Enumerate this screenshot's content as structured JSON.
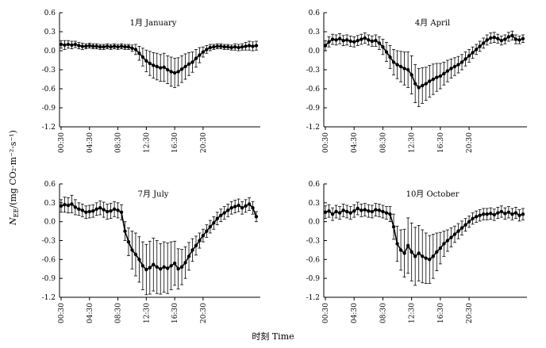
{
  "figure": {
    "xlabel": "时刻 Time",
    "ylabel_prefix": "N",
    "ylabel_sub": "EE",
    "ylabel_body": "/(mg CO₂·m⁻²·s⁻¹)"
  },
  "chart_data": [
    {
      "type": "line",
      "title": "1月 January",
      "x_ticks": [
        "00:30",
        "04:30",
        "08:30",
        "12:30",
        "16:30",
        "20:30"
      ],
      "y_ticks": [
        "0.6",
        "0.3",
        "0.0",
        "-0.3",
        "-0.6",
        "-0.9",
        "-1.2"
      ],
      "ylim": [
        -1.2,
        0.6
      ],
      "values": [
        0.1,
        0.09,
        0.1,
        0.09,
        0.1,
        0.08,
        0.07,
        0.07,
        0.08,
        0.07,
        0.07,
        0.06,
        0.06,
        0.07,
        0.06,
        0.07,
        0.06,
        0.07,
        0.06,
        0.06,
        0.04,
        0.02,
        -0.04,
        -0.1,
        -0.16,
        -0.2,
        -0.23,
        -0.25,
        -0.27,
        -0.26,
        -0.3,
        -0.33,
        -0.35,
        -0.33,
        -0.29,
        -0.25,
        -0.21,
        -0.18,
        -0.12,
        -0.07,
        -0.02,
        0.02,
        0.05,
        0.06,
        0.07,
        0.07,
        0.06,
        0.06,
        0.05,
        0.06,
        0.05,
        0.06,
        0.07,
        0.08,
        0.07,
        0.08
      ],
      "errors": [
        0.06,
        0.07,
        0.06,
        0.06,
        0.05,
        0.05,
        0.05,
        0.04,
        0.04,
        0.04,
        0.04,
        0.04,
        0.04,
        0.04,
        0.04,
        0.04,
        0.04,
        0.04,
        0.04,
        0.04,
        0.05,
        0.08,
        0.11,
        0.14,
        0.17,
        0.19,
        0.2,
        0.21,
        0.21,
        0.22,
        0.22,
        0.23,
        0.23,
        0.22,
        0.21,
        0.2,
        0.18,
        0.16,
        0.14,
        0.12,
        0.08,
        0.06,
        0.05,
        0.04,
        0.04,
        0.04,
        0.04,
        0.04,
        0.04,
        0.05,
        0.05,
        0.05,
        0.06,
        0.07,
        0.07,
        0.07
      ]
    },
    {
      "type": "line",
      "title": "4月 April",
      "x_ticks": [
        "00:30",
        "04:30",
        "08:30",
        "12:30",
        "16:30",
        "20:30"
      ],
      "y_ticks": [
        "0.6",
        "0.3",
        "0.0",
        "-0.3",
        "-0.6",
        "-0.9",
        "-1.2"
      ],
      "ylim": [
        -1.2,
        0.6
      ],
      "values": [
        0.08,
        0.14,
        0.18,
        0.17,
        0.19,
        0.16,
        0.17,
        0.15,
        0.14,
        0.16,
        0.18,
        0.2,
        0.17,
        0.15,
        0.16,
        0.12,
        0.06,
        -0.02,
        -0.1,
        -0.18,
        -0.22,
        -0.25,
        -0.28,
        -0.3,
        -0.38,
        -0.52,
        -0.58,
        -0.55,
        -0.52,
        -0.48,
        -0.45,
        -0.42,
        -0.4,
        -0.36,
        -0.32,
        -0.28,
        -0.25,
        -0.22,
        -0.18,
        -0.13,
        -0.08,
        -0.03,
        0.02,
        0.07,
        0.12,
        0.17,
        0.2,
        0.21,
        0.19,
        0.16,
        0.18,
        0.22,
        0.24,
        0.18,
        0.17,
        0.19
      ],
      "errors": [
        0.08,
        0.08,
        0.08,
        0.08,
        0.08,
        0.08,
        0.08,
        0.08,
        0.08,
        0.08,
        0.08,
        0.08,
        0.08,
        0.08,
        0.09,
        0.1,
        0.12,
        0.15,
        0.18,
        0.2,
        0.22,
        0.24,
        0.26,
        0.28,
        0.3,
        0.3,
        0.3,
        0.28,
        0.26,
        0.25,
        0.24,
        0.22,
        0.2,
        0.18,
        0.17,
        0.15,
        0.14,
        0.13,
        0.12,
        0.11,
        0.1,
        0.09,
        0.08,
        0.08,
        0.08,
        0.08,
        0.08,
        0.08,
        0.07,
        0.07,
        0.07,
        0.07,
        0.07,
        0.07,
        0.06,
        0.06
      ]
    },
    {
      "type": "line",
      "title": "7月 July",
      "x_ticks": [
        "00:30",
        "04:30",
        "08:30",
        "12:30",
        "16:30",
        "20:30"
      ],
      "y_ticks": [
        "0.6",
        "0.3",
        "0.0",
        "-0.3",
        "-0.6",
        "-0.9",
        "-1.2"
      ],
      "ylim": [
        -1.2,
        0.6
      ],
      "values": [
        0.25,
        0.27,
        0.26,
        0.28,
        0.23,
        0.2,
        0.18,
        0.15,
        0.16,
        0.17,
        0.2,
        0.22,
        0.19,
        0.16,
        0.17,
        0.2,
        0.18,
        0.15,
        -0.15,
        -0.32,
        -0.45,
        -0.52,
        -0.6,
        -0.7,
        -0.76,
        -0.73,
        -0.68,
        -0.72,
        -0.75,
        -0.72,
        -0.74,
        -0.7,
        -0.66,
        -0.75,
        -0.72,
        -0.65,
        -0.55,
        -0.45,
        -0.38,
        -0.3,
        -0.22,
        -0.15,
        -0.08,
        -0.02,
        0.05,
        0.1,
        0.14,
        0.18,
        0.22,
        0.24,
        0.26,
        0.22,
        0.25,
        0.28,
        0.22,
        0.08
      ],
      "errors": [
        0.1,
        0.12,
        0.12,
        0.14,
        0.12,
        0.1,
        0.1,
        0.1,
        0.1,
        0.1,
        0.1,
        0.11,
        0.12,
        0.12,
        0.12,
        0.12,
        0.12,
        0.12,
        0.15,
        0.22,
        0.3,
        0.34,
        0.36,
        0.38,
        0.4,
        0.42,
        0.42,
        0.42,
        0.4,
        0.4,
        0.4,
        0.38,
        0.35,
        0.32,
        0.28,
        0.25,
        0.22,
        0.18,
        0.15,
        0.12,
        0.1,
        0.1,
        0.1,
        0.1,
        0.1,
        0.1,
        0.1,
        0.1,
        0.1,
        0.1,
        0.1,
        0.1,
        0.1,
        0.1,
        0.1,
        0.08
      ]
    },
    {
      "type": "line",
      "title": "10月 October",
      "x_ticks": [
        "00:30",
        "04:30",
        "08:30",
        "12:30",
        "16:30",
        "20:30"
      ],
      "y_ticks": [
        "0.6",
        "0.3",
        "0.0",
        "-0.3",
        "-0.6",
        "-0.9",
        "-1.2"
      ],
      "ylim": [
        -1.2,
        0.6
      ],
      "values": [
        0.15,
        0.17,
        0.12,
        0.16,
        0.14,
        0.18,
        0.16,
        0.14,
        0.17,
        0.21,
        0.18,
        0.19,
        0.17,
        0.16,
        0.19,
        0.18,
        0.16,
        0.14,
        0.12,
        -0.08,
        -0.35,
        -0.45,
        -0.5,
        -0.38,
        -0.48,
        -0.55,
        -0.5,
        -0.55,
        -0.58,
        -0.6,
        -0.55,
        -0.48,
        -0.42,
        -0.35,
        -0.3,
        -0.25,
        -0.2,
        -0.15,
        -0.1,
        -0.05,
        0.0,
        0.05,
        0.08,
        0.1,
        0.12,
        0.12,
        0.13,
        0.11,
        0.14,
        0.16,
        0.13,
        0.15,
        0.12,
        0.14,
        0.1,
        0.12
      ],
      "errors": [
        0.1,
        0.1,
        0.1,
        0.1,
        0.1,
        0.1,
        0.1,
        0.1,
        0.1,
        0.1,
        0.1,
        0.1,
        0.1,
        0.1,
        0.1,
        0.1,
        0.1,
        0.1,
        0.12,
        0.2,
        0.28,
        0.32,
        0.38,
        0.44,
        0.46,
        0.46,
        0.44,
        0.42,
        0.4,
        0.38,
        0.35,
        0.3,
        0.25,
        0.2,
        0.17,
        0.15,
        0.13,
        0.12,
        0.11,
        0.1,
        0.09,
        0.09,
        0.09,
        0.09,
        0.09,
        0.09,
        0.09,
        0.09,
        0.09,
        0.09,
        0.09,
        0.09,
        0.09,
        0.09,
        0.09,
        0.09
      ]
    }
  ]
}
